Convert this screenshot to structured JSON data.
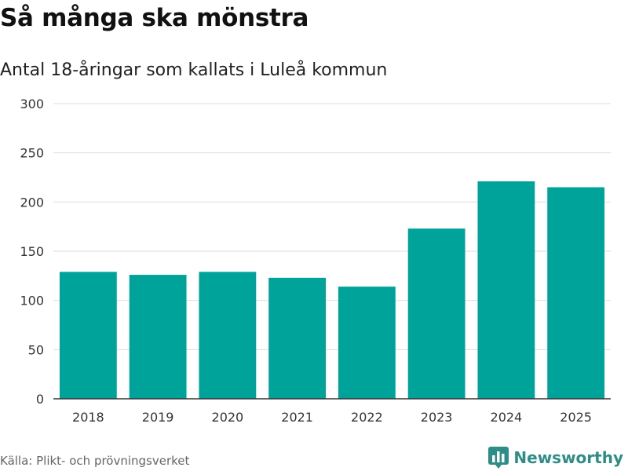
{
  "header": {
    "title": "Så många ska mönstra",
    "subtitle": "Antal 18-åringar som kallats i Luleå kommun"
  },
  "footer": {
    "source": "Källa: Plikt- och prövningsverket",
    "brand": "Newsworthy"
  },
  "colors": {
    "bar": "#00a39a",
    "grid": "#dddddd",
    "axis": "#333333",
    "brand": "#2f8d87"
  },
  "icons": {
    "brand_logo": "bar-chart-logo-icon"
  },
  "chart_data": {
    "type": "bar",
    "title": "Så många ska mönstra",
    "subtitle": "Antal 18-åringar som kallats i Luleå kommun",
    "categories": [
      "2018",
      "2019",
      "2020",
      "2021",
      "2022",
      "2023",
      "2024",
      "2025"
    ],
    "values": [
      129,
      126,
      129,
      123,
      114,
      173,
      221,
      215
    ],
    "ylim": [
      0,
      300
    ],
    "yticks": [
      "0",
      "50",
      "100",
      "150",
      "200",
      "250",
      "300"
    ],
    "grid": true,
    "legend": "none"
  }
}
